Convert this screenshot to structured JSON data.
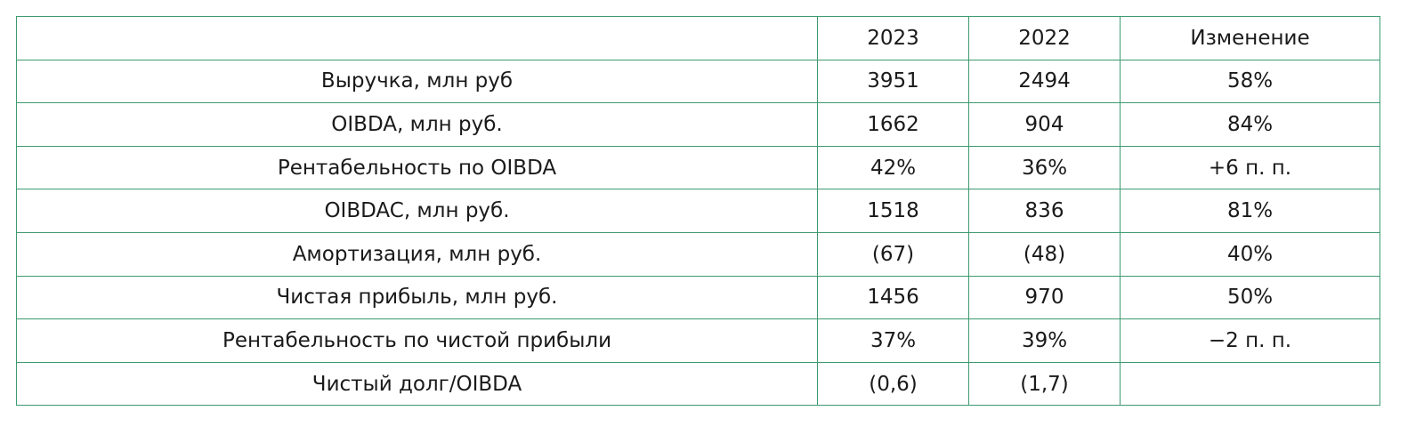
{
  "table": {
    "header": [
      "2023",
      "2022",
      "Изменение"
    ],
    "rows": [
      [
        "Выручка, млн руб",
        "3951",
        "2494",
        "58%"
      ],
      [
        "OIBDA, млн руб.",
        "1662",
        "904",
        "84%"
      ],
      [
        "Рентабельность по OIBDA",
        "42%",
        "36%",
        "+6 п. п."
      ],
      [
        "OIBDAC, млн руб.",
        "1518",
        "836",
        "81%"
      ],
      [
        "Амортизация, млн руб.",
        "(67)",
        "(48)",
        "40%"
      ],
      [
        "Чистая прибыль, млн руб.",
        "1456",
        "970",
        "50%"
      ],
      [
        "Рентабельность по чистой прибыли",
        "37%",
        "39%",
        "−2 п. п."
      ],
      [
        "Чистый долг/OIBDA",
        "(0,6)",
        "(1,7)"
      ]
    ]
  }
}
